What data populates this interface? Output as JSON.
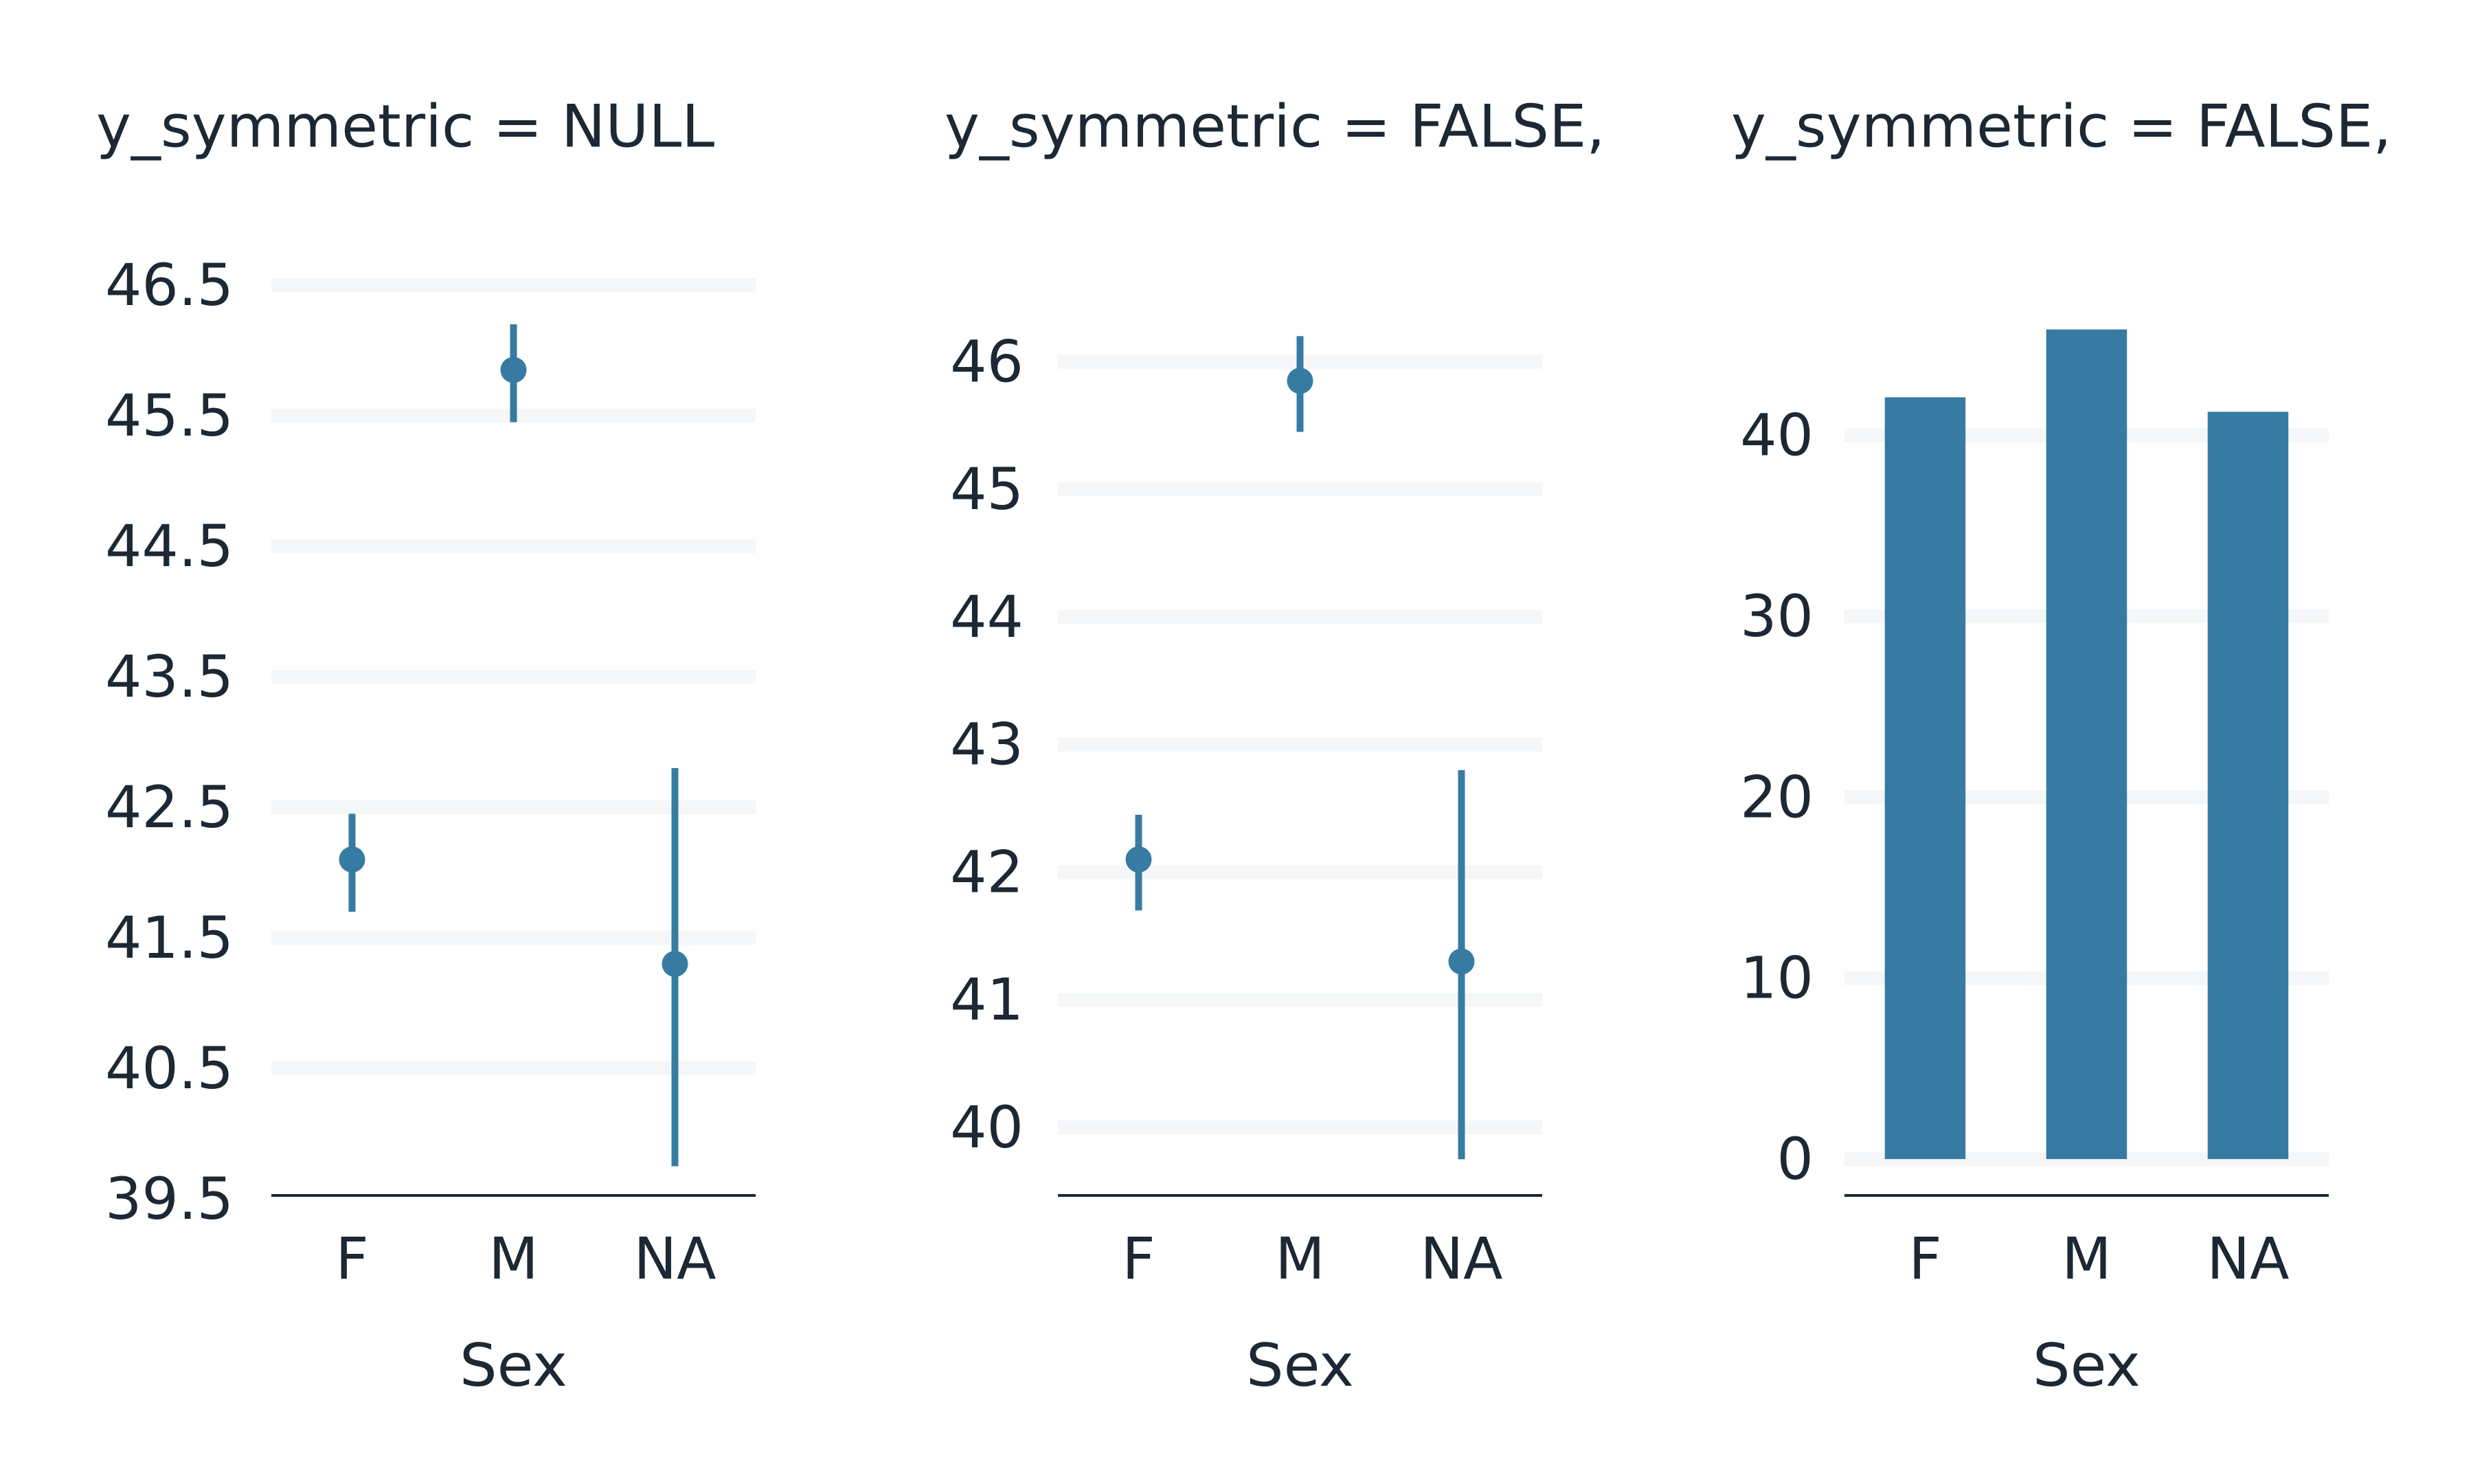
{
  "colors": {
    "mark": "#377ba3",
    "grid": "#f4f6f8",
    "axis": "#1c2833",
    "text": "#1c2833"
  },
  "chart_data": [
    {
      "type": "pointrange",
      "title": "y_symmetric = NULL",
      "xlabel": "Sex",
      "ylabel": "",
      "categories": [
        "F",
        "M",
        "NA"
      ],
      "values": [
        42.1,
        45.85,
        41.3
      ],
      "lower": [
        41.7,
        45.45,
        39.75
      ],
      "upper": [
        42.45,
        46.2,
        42.8
      ],
      "ylim": [
        39.5,
        46.5
      ],
      "yticks": [
        39.5,
        40.5,
        41.5,
        42.5,
        43.5,
        44.5,
        45.5,
        46.5
      ],
      "ytick_labels": [
        "39.5",
        "40.5",
        "41.5",
        "42.5",
        "43.5",
        "44.5",
        "45.5",
        "46.5"
      ],
      "gridlines": [
        40.5,
        41.5,
        42.5,
        43.5,
        44.5,
        45.5,
        46.5
      ],
      "grid": true
    },
    {
      "type": "pointrange",
      "title": "y_symmetric = FALSE,",
      "xlabel": "Sex",
      "ylabel": "",
      "categories": [
        "F",
        "M",
        "NA"
      ],
      "values": [
        42.1,
        45.85,
        41.3
      ],
      "lower": [
        41.7,
        45.45,
        39.75
      ],
      "upper": [
        42.45,
        46.2,
        42.8
      ],
      "ylim": [
        39.44,
        46.6
      ],
      "yticks": [
        40,
        41,
        42,
        43,
        44,
        45,
        46
      ],
      "ytick_labels": [
        "40",
        "41",
        "42",
        "43",
        "44",
        "45",
        "46"
      ],
      "gridlines": [
        40,
        41,
        42,
        43,
        44,
        45,
        46
      ],
      "grid": true
    },
    {
      "type": "bar",
      "title": "y_symmetric = FALSE,",
      "xlabel": "Sex",
      "ylabel": "",
      "categories": [
        "F",
        "M",
        "NA"
      ],
      "values": [
        42.1,
        45.85,
        41.3
      ],
      "ylim": [
        -2.2,
        48.3
      ],
      "yticks": [
        0,
        10,
        20,
        30,
        40
      ],
      "ytick_labels": [
        "0",
        "10",
        "20",
        "30",
        "40"
      ],
      "gridlines": [
        0,
        10,
        20,
        30,
        40
      ],
      "grid": true
    }
  ]
}
